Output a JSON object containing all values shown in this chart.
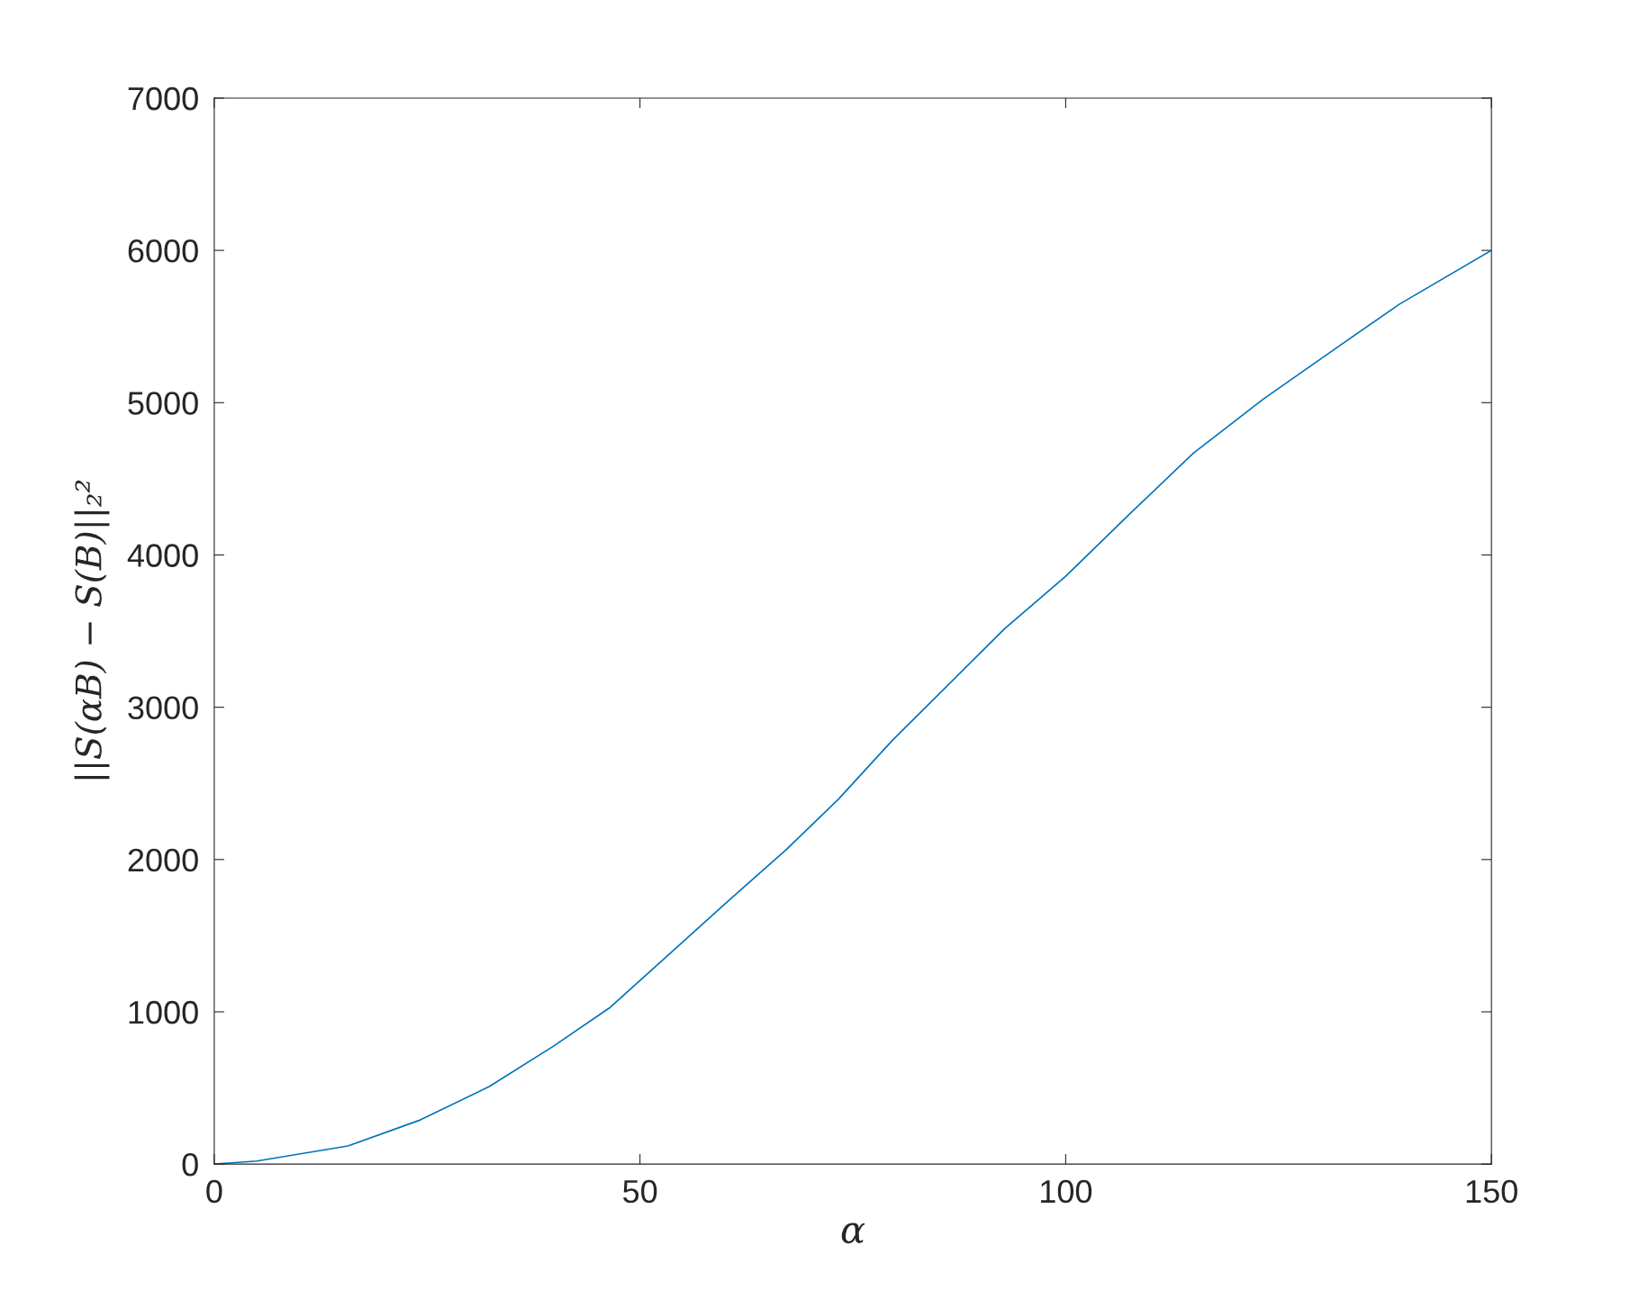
{
  "chart_data": {
    "type": "line",
    "xlabel": "α",
    "ylabel": "||S(αB) − S(B)||₂²",
    "series": [
      {
        "color": "#0072bd",
        "x": [
          0,
          5,
          15.7,
          24.2,
          32.3,
          39.8,
          46.4,
          54,
          60.6,
          67.2,
          73.3,
          79.6,
          92.8,
          100,
          107.6,
          115,
          123.2,
          131.7,
          139.2,
          150
        ],
        "values": [
          0,
          20,
          119,
          290,
          509,
          773,
          1025,
          1407,
          1740,
          2066,
          2396,
          2780,
          3514,
          3860,
          4274,
          4669,
          5023,
          5356,
          5647,
          6000
        ]
      }
    ],
    "xlim": [
      0,
      150
    ],
    "xticks": [
      0,
      50,
      100,
      150
    ],
    "ylim": [
      0,
      7000
    ],
    "yticks": [
      0,
      1000,
      2000,
      3000,
      4000,
      5000,
      6000,
      7000
    ],
    "grid": false,
    "legend": false,
    "marker": "none",
    "line_style": "solid"
  }
}
